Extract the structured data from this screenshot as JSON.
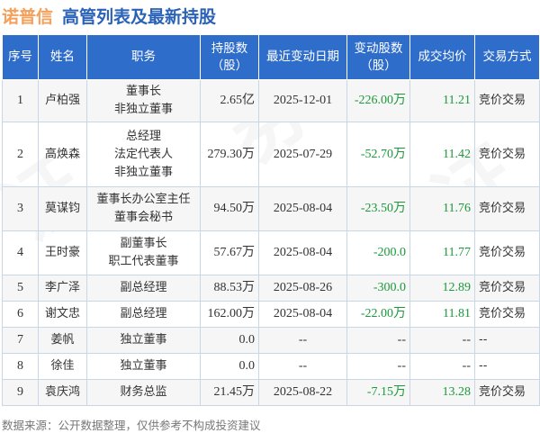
{
  "title": {
    "company": "诺普信",
    "subtitle": "高管列表及最新持股"
  },
  "columns": [
    "序号",
    "姓名",
    "职务",
    "持股数\n（股）",
    "最近变动日期",
    "变动股数\n（股）",
    "成交均价",
    "交易方式"
  ],
  "rows": [
    {
      "no": "1",
      "name": "卢柏强",
      "roles": [
        "董事长",
        "非独立董事"
      ],
      "shares": "2.65亿",
      "date": "2025-12-01",
      "change": "-226.00万",
      "price": "11.21",
      "method": "竞价交易",
      "h": 47
    },
    {
      "no": "2",
      "name": "高焕森",
      "roles": [
        "总经理",
        "法定代表人",
        "非独立董事"
      ],
      "shares": "279.30万",
      "date": "2025-07-29",
      "change": "-52.70万",
      "price": "11.42",
      "method": "竞价交易",
      "h": 72
    },
    {
      "no": "3",
      "name": "莫谋钧",
      "roles": [
        "董事长办公室主任",
        "董事会秘书"
      ],
      "shares": "94.50万",
      "date": "2025-08-04",
      "change": "-23.50万",
      "price": "11.76",
      "method": "竞价交易",
      "h": 49
    },
    {
      "no": "4",
      "name": "王时豪",
      "roles": [
        "副董事长",
        "职工代表董事"
      ],
      "shares": "57.67万",
      "date": "2025-08-04",
      "change": "-200.0",
      "price": "11.77",
      "method": "竞价交易",
      "h": 49
    },
    {
      "no": "5",
      "name": "李广泽",
      "roles": [
        "副总经理"
      ],
      "shares": "88.53万",
      "date": "2025-08-26",
      "change": "-300.0",
      "price": "12.89",
      "method": "竞价交易",
      "h": 29
    },
    {
      "no": "6",
      "name": "谢文忠",
      "roles": [
        "副总经理"
      ],
      "shares": "162.00万",
      "date": "2025-08-04",
      "change": "-22.00万",
      "price": "11.81",
      "method": "竞价交易",
      "h": 29
    },
    {
      "no": "7",
      "name": "姜帆",
      "roles": [
        "独立董事"
      ],
      "shares": "0.0",
      "date": "--",
      "change": "--",
      "price": "--",
      "method": "--",
      "h": 29
    },
    {
      "no": "8",
      "name": "徐佳",
      "roles": [
        "独立董事"
      ],
      "shares": "0.0",
      "date": "--",
      "change": "--",
      "price": "--",
      "method": "--",
      "h": 29
    },
    {
      "no": "9",
      "name": "袁庆鸿",
      "roles": [
        "财务总监"
      ],
      "shares": "21.45万",
      "date": "2025-08-22",
      "change": "-7.15万",
      "price": "13.28",
      "method": "竞价交易",
      "h": 29
    }
  ],
  "footer": "数据来源：公开数据整理，仅供参考不构成投资建议",
  "colors": {
    "header_bg": "#2f6dcb",
    "title_company": "#f5a05a",
    "title_sub": "#2a62b8",
    "negative": "#1a9a3a"
  }
}
